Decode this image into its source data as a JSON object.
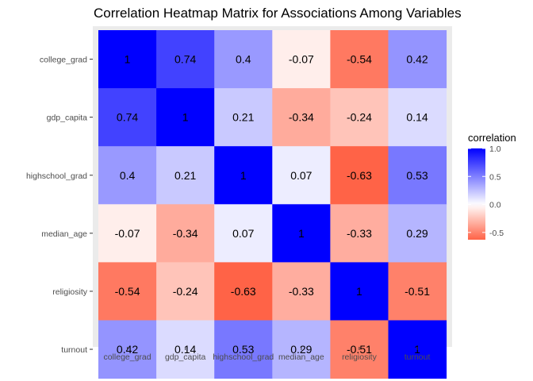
{
  "chart_data": {
    "type": "heatmap",
    "title": "Correlation Heatmap Matrix for Associations Among Variables",
    "x_categories": [
      "college_grad",
      "gdp_capita",
      "highschool_grad",
      "median_age",
      "religiosity",
      "turnout"
    ],
    "y_categories": [
      "college_grad",
      "gdp_capita",
      "highschool_grad",
      "median_age",
      "religiosity",
      "turnout"
    ],
    "values": [
      [
        1,
        0.74,
        0.4,
        -0.07,
        -0.54,
        0.42
      ],
      [
        0.74,
        1,
        0.21,
        -0.34,
        -0.24,
        0.14
      ],
      [
        0.4,
        0.21,
        1,
        0.07,
        -0.63,
        0.53
      ],
      [
        -0.07,
        -0.34,
        0.07,
        1,
        -0.33,
        0.29
      ],
      [
        -0.54,
        -0.24,
        -0.63,
        -0.33,
        1,
        -0.51
      ],
      [
        0.42,
        0.14,
        0.53,
        0.29,
        -0.51,
        1
      ]
    ],
    "value_labels": [
      [
        "1",
        "0.74",
        "0.4",
        "-0.07",
        "-0.54",
        "0.42"
      ],
      [
        "0.74",
        "1",
        "0.21",
        "-0.34",
        "-0.24",
        "0.14"
      ],
      [
        "0.4",
        "0.21",
        "1",
        "0.07",
        "-0.63",
        "0.53"
      ],
      [
        "-0.07",
        "-0.34",
        "0.07",
        "1",
        "-0.33",
        "0.29"
      ],
      [
        "-0.54",
        "-0.24",
        "-0.63",
        "-0.33",
        "1",
        "-0.51"
      ],
      [
        "0.42",
        "0.14",
        "0.53",
        "0.29",
        "-0.51",
        "1"
      ]
    ],
    "legend": {
      "title": "correlation",
      "placement": "right",
      "ticks": [
        {
          "value": 1.0,
          "label": "1.0"
        },
        {
          "value": 0.5,
          "label": "0.5"
        },
        {
          "value": 0.0,
          "label": "0.0"
        },
        {
          "value": -0.5,
          "label": "-0.5"
        }
      ],
      "range": [
        -0.63,
        1
      ]
    },
    "colors": {
      "low": "#ff6347",
      "mid": "#ffffff",
      "high": "#0000ff",
      "panel_background": "#ebebeb"
    },
    "grid": true
  }
}
